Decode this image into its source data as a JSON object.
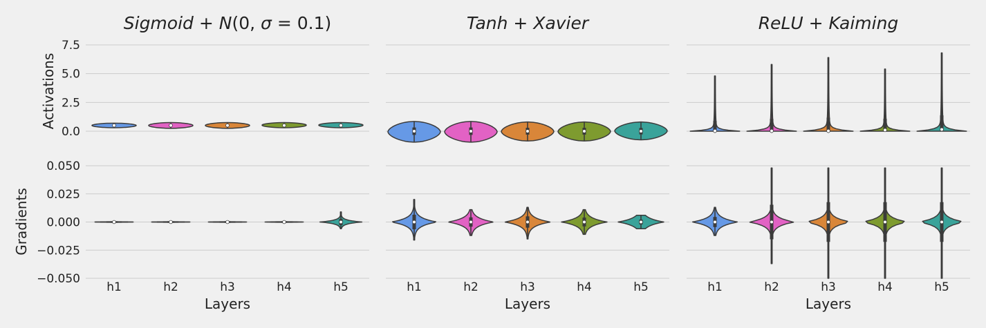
{
  "figure": {
    "colors": {
      "background": "#f0f0f0",
      "grid": "#cbcbcb",
      "h1": "#6699e6",
      "h2": "#e262c4",
      "h3": "#d98639",
      "h4": "#7e9b2f",
      "h5": "#3aa39a"
    },
    "xlabel": "Layers",
    "row_labels": [
      "Activations",
      "Gradients"
    ]
  },
  "chart_data": [
    {
      "type": "violin",
      "title": "Sigmoid + N(0, σ = 0.1)",
      "title_parts": [
        "Sigmoid",
        " + ",
        "N",
        "(0, ",
        "σ",
        " = 0.1)"
      ],
      "row": "Activations",
      "ylabel": "Activations",
      "categories": [
        "h1",
        "h2",
        "h3",
        "h4",
        "h5"
      ],
      "ylim": [
        -0.6,
        7.8
      ],
      "yticks": [
        "0.0",
        "2.5",
        "5.0",
        "7.5"
      ],
      "ytick_values": [
        0,
        2.5,
        5,
        7.5
      ],
      "grid": true,
      "series": [
        {
          "category": "h1",
          "min": 0.3,
          "max": 0.7,
          "median": 0.5
        },
        {
          "category": "h2",
          "min": 0.25,
          "max": 0.75,
          "median": 0.5
        },
        {
          "category": "h3",
          "min": 0.25,
          "max": 0.75,
          "median": 0.5
        },
        {
          "category": "h4",
          "min": 0.3,
          "max": 0.75,
          "median": 0.5
        },
        {
          "category": "h5",
          "min": 0.3,
          "max": 0.75,
          "median": 0.5
        }
      ]
    },
    {
      "type": "violin",
      "title": "Tanh + Xavier",
      "title_parts": [
        "Tanh",
        " + ",
        "Xavier"
      ],
      "row": "Activations",
      "categories": [
        "h1",
        "h2",
        "h3",
        "h4",
        "h5"
      ],
      "ylim": [
        -0.6,
        7.8
      ],
      "grid": true,
      "series": [
        {
          "category": "h1",
          "min": -0.95,
          "max": 0.85,
          "median": 0.0
        },
        {
          "category": "h2",
          "min": -0.95,
          "max": 0.85,
          "median": 0.0
        },
        {
          "category": "h3",
          "min": -0.85,
          "max": 0.8,
          "median": 0.0
        },
        {
          "category": "h4",
          "min": -0.85,
          "max": 0.8,
          "median": 0.0
        },
        {
          "category": "h5",
          "min": -0.75,
          "max": 0.8,
          "median": 0.0
        }
      ]
    },
    {
      "type": "violin",
      "title": "ReLU + Kaiming",
      "title_parts": [
        "ReLU",
        " + ",
        "Kaiming"
      ],
      "row": "Activations",
      "categories": [
        "h1",
        "h2",
        "h3",
        "h4",
        "h5"
      ],
      "ylim": [
        -0.6,
        7.8
      ],
      "grid": true,
      "series": [
        {
          "category": "h1",
          "min": 0.0,
          "max": 4.8,
          "median": 0.02
        },
        {
          "category": "h2",
          "min": 0.0,
          "max": 5.8,
          "median": 0.02
        },
        {
          "category": "h3",
          "min": 0.0,
          "max": 6.4,
          "median": 0.02
        },
        {
          "category": "h4",
          "min": 0.0,
          "max": 5.4,
          "median": 0.1
        },
        {
          "category": "h5",
          "min": 0.0,
          "max": 6.8,
          "median": 0.15
        }
      ]
    },
    {
      "type": "violin",
      "row": "Gradients",
      "ylabel": "Gradients",
      "xlabel": "Layers",
      "categories": [
        "h1",
        "h2",
        "h3",
        "h4",
        "h5"
      ],
      "ylim": [
        -0.05,
        0.05
      ],
      "yticks": [
        "−0.050",
        "−0.025",
        "0.000",
        "0.025",
        "0.050"
      ],
      "ytick_values": [
        -0.05,
        -0.025,
        0,
        0.025,
        0.05
      ],
      "grid": true,
      "series": [
        {
          "category": "h1",
          "min": -0.0003,
          "max": 0.0003,
          "median": 0.0
        },
        {
          "category": "h2",
          "min": -0.0003,
          "max": 0.0003,
          "median": 0.0
        },
        {
          "category": "h3",
          "min": -0.0005,
          "max": 0.0005,
          "median": 0.0
        },
        {
          "category": "h4",
          "min": -0.001,
          "max": 0.001,
          "median": 0.0
        },
        {
          "category": "h5",
          "min": -0.006,
          "max": 0.009,
          "median": 0.0
        }
      ]
    },
    {
      "type": "violin",
      "row": "Gradients",
      "xlabel": "Layers",
      "categories": [
        "h1",
        "h2",
        "h3",
        "h4",
        "h5"
      ],
      "ylim": [
        -0.05,
        0.05
      ],
      "grid": true,
      "series": [
        {
          "category": "h1",
          "min": -0.016,
          "max": 0.02,
          "median": 0.0
        },
        {
          "category": "h2",
          "min": -0.012,
          "max": 0.011,
          "median": 0.0
        },
        {
          "category": "h3",
          "min": -0.015,
          "max": 0.013,
          "median": 0.0
        },
        {
          "category": "h4",
          "min": -0.011,
          "max": 0.011,
          "median": 0.0
        },
        {
          "category": "h5",
          "min": -0.006,
          "max": 0.006,
          "median": 0.0
        }
      ]
    },
    {
      "type": "violin",
      "row": "Gradients",
      "xlabel": "Layers",
      "categories": [
        "h1",
        "h2",
        "h3",
        "h4",
        "h5"
      ],
      "ylim": [
        -0.05,
        0.05
      ],
      "grid": true,
      "series": [
        {
          "category": "h1",
          "min": -0.012,
          "max": 0.013,
          "median": 0.0
        },
        {
          "category": "h2",
          "min": -0.037,
          "max": 0.048,
          "median": 0.0
        },
        {
          "category": "h3",
          "min": -0.05,
          "max": 0.048,
          "median": 0.0
        },
        {
          "category": "h4",
          "min": -0.05,
          "max": 0.048,
          "median": 0.0
        },
        {
          "category": "h5",
          "min": -0.05,
          "max": 0.048,
          "median": 0.0
        }
      ]
    }
  ]
}
